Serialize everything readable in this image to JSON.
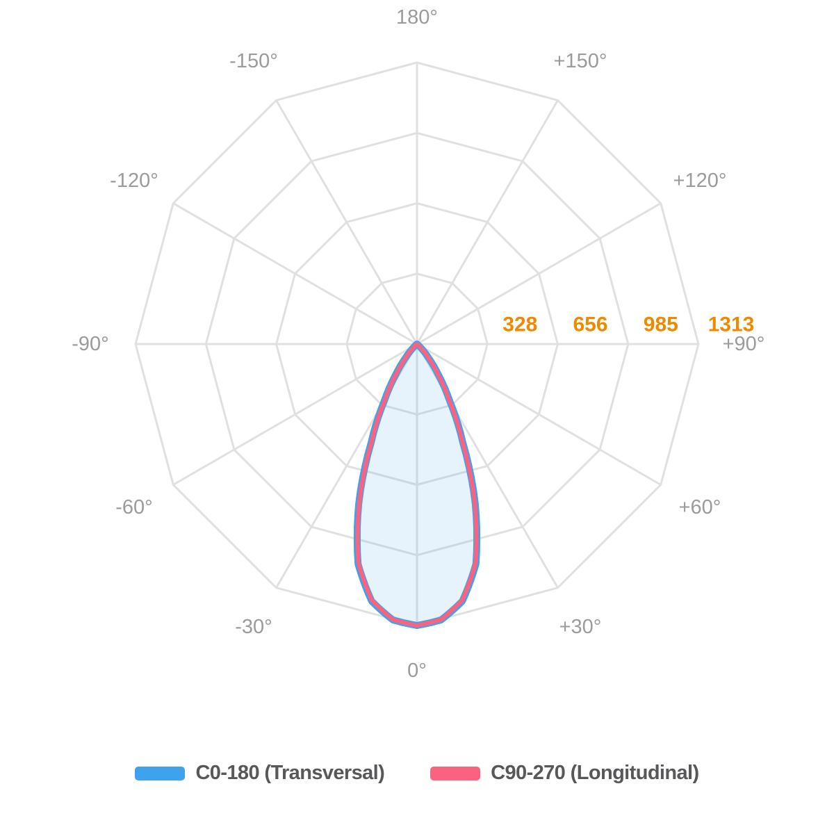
{
  "chart_data": {
    "type": "polar",
    "subtype": "photometric-intensity-distribution",
    "units": "cd",
    "grid": {
      "rings": 4,
      "ring_shape": "12-gon",
      "spoke_step_deg": 30,
      "color": "#E0E0E0"
    },
    "radial_axis": {
      "ticks": [
        328,
        656,
        985,
        1313
      ],
      "max": 1313,
      "tick_color": "#ED8A00"
    },
    "angle_label_color": "#9B9B9B",
    "angle_labels": [
      {
        "deg": 0,
        "label": "0°"
      },
      {
        "deg": 30,
        "label": "+30°"
      },
      {
        "deg": 60,
        "label": "+60°"
      },
      {
        "deg": 90,
        "label": "+90°"
      },
      {
        "deg": 120,
        "label": "+120°"
      },
      {
        "deg": 150,
        "label": "+150°"
      },
      {
        "deg": 180,
        "label": "180°"
      },
      {
        "deg": -150,
        "label": "-150°"
      },
      {
        "deg": -120,
        "label": "-120°"
      },
      {
        "deg": -90,
        "label": "-90°"
      },
      {
        "deg": -60,
        "label": "-60°"
      },
      {
        "deg": -30,
        "label": "-30°"
      }
    ],
    "series": [
      {
        "name": "C0-180 (Transversal)",
        "color": "#3FA2EC",
        "fill": "rgba(63,162,236,0.13)",
        "symmetric": true,
        "angles_deg": [
          0,
          5,
          10,
          15,
          20,
          25,
          30,
          35,
          40,
          45,
          50,
          55
        ],
        "values_cd": [
          1313,
          1292,
          1218,
          1062,
          795,
          505,
          302,
          170,
          80,
          28,
          7,
          0
        ]
      },
      {
        "name": "C90-270 (Longitudinal)",
        "color": "#FA6380",
        "fill": null,
        "symmetric": true,
        "angles_deg": [
          0,
          5,
          10,
          15,
          20,
          25,
          30,
          35,
          40,
          45,
          50,
          55
        ],
        "values_cd": [
          1313,
          1290,
          1214,
          1056,
          788,
          498,
          296,
          165,
          76,
          25,
          5,
          0
        ]
      }
    ]
  },
  "legend": {
    "items": [
      {
        "label": "C0-180 (Transversal)",
        "color": "#3FA2EC"
      },
      {
        "label": "C90-270 (Longitudinal)",
        "color": "#FA6380"
      }
    ]
  }
}
